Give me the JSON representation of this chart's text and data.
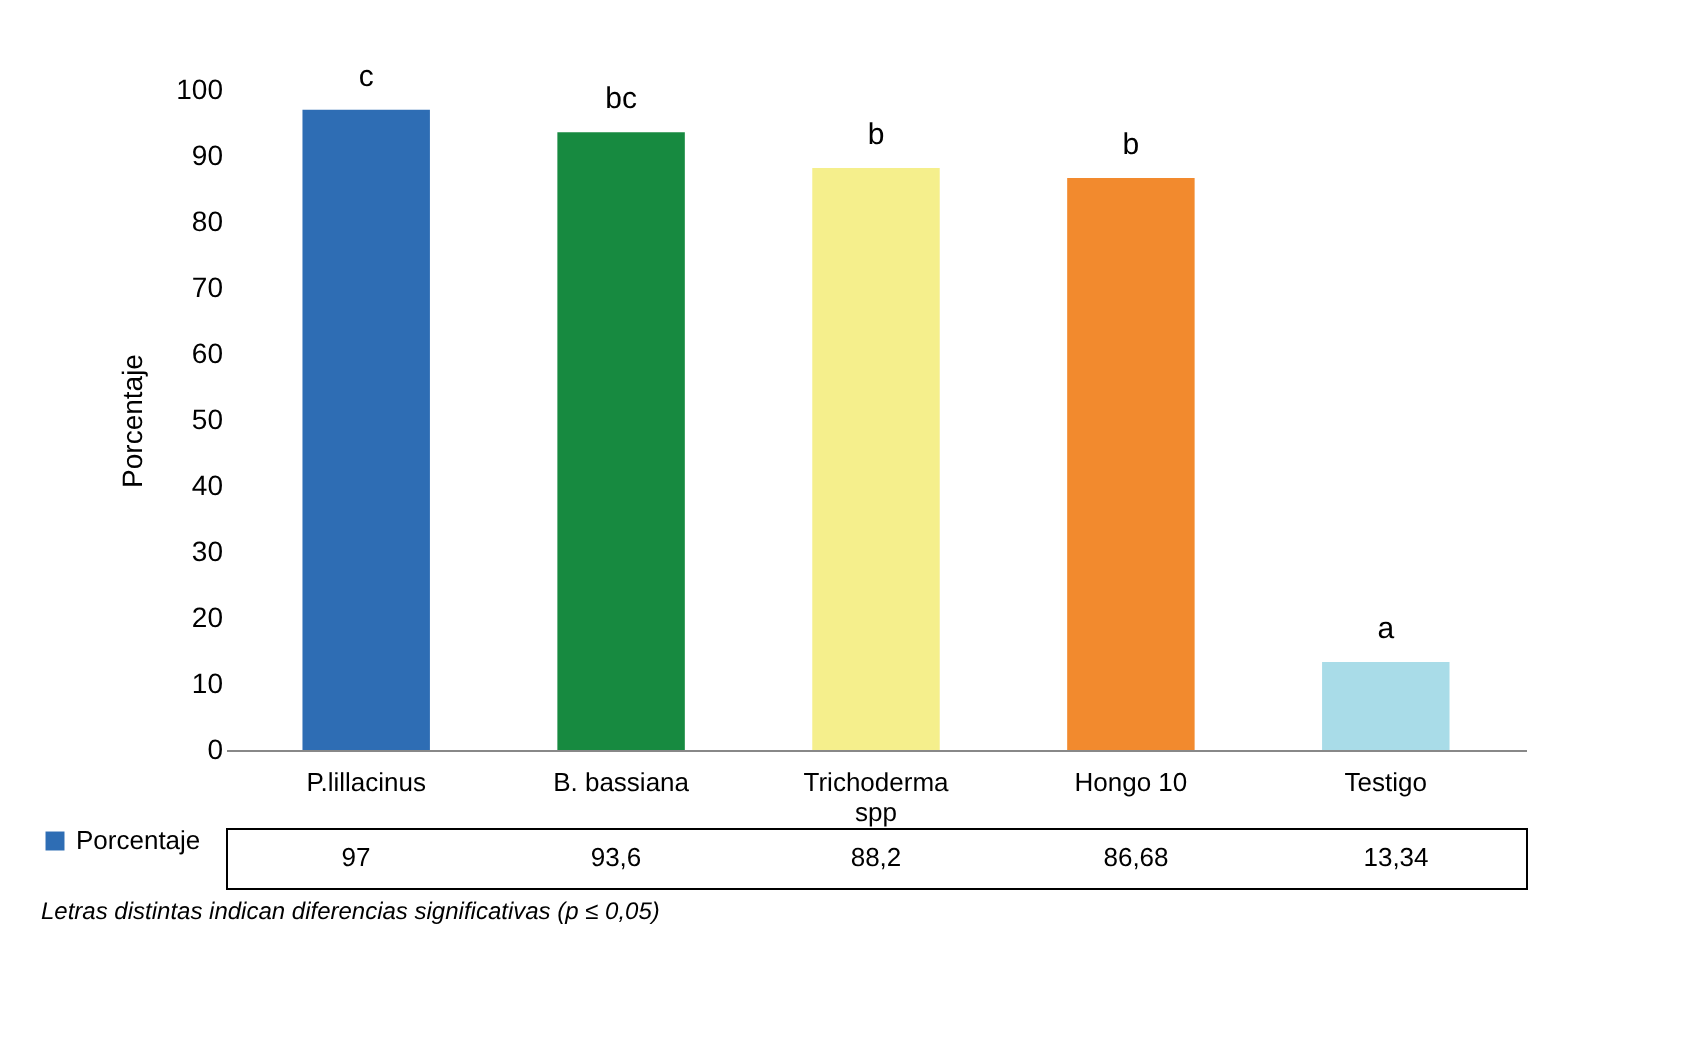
{
  "chart_data": {
    "type": "bar",
    "ylabel": "Porcentaje",
    "categories": [
      "P.lillacinus",
      "B. bassiana",
      "Trichoderma spp",
      "Hongo 10",
      "Testigo"
    ],
    "series": [
      {
        "name": "Porcentaje",
        "values": [
          97,
          93.6,
          88.2,
          86.68,
          13.34
        ],
        "value_labels": [
          "97",
          "93,6",
          "88,2",
          "86,68",
          "13,34"
        ]
      }
    ],
    "colors": [
      "#2e6db4",
      "#178a40",
      "#f5ef8c",
      "#f28a2e",
      "#a9dce8"
    ],
    "ylim": [
      0,
      100
    ],
    "yticks": [
      0,
      10,
      20,
      30,
      40,
      50,
      60,
      70,
      80,
      90,
      100
    ],
    "grid": false,
    "legend": "bottom left",
    "annotations": [
      {
        "text": "c",
        "x": "P.lillacinus",
        "y": 97
      },
      {
        "text": "bc",
        "x": "B. bassiana",
        "y": 93.6
      },
      {
        "text": "b",
        "x": "Trichoderma spp",
        "y": 88.2
      },
      {
        "text": "b",
        "x": "Hongo 10",
        "y": 86.68
      },
      {
        "text": "a",
        "x": "Testigo",
        "y": 13.34
      },
      "Letras distintas indican diferencias significativas (p ≤ 0,05)"
    ]
  }
}
